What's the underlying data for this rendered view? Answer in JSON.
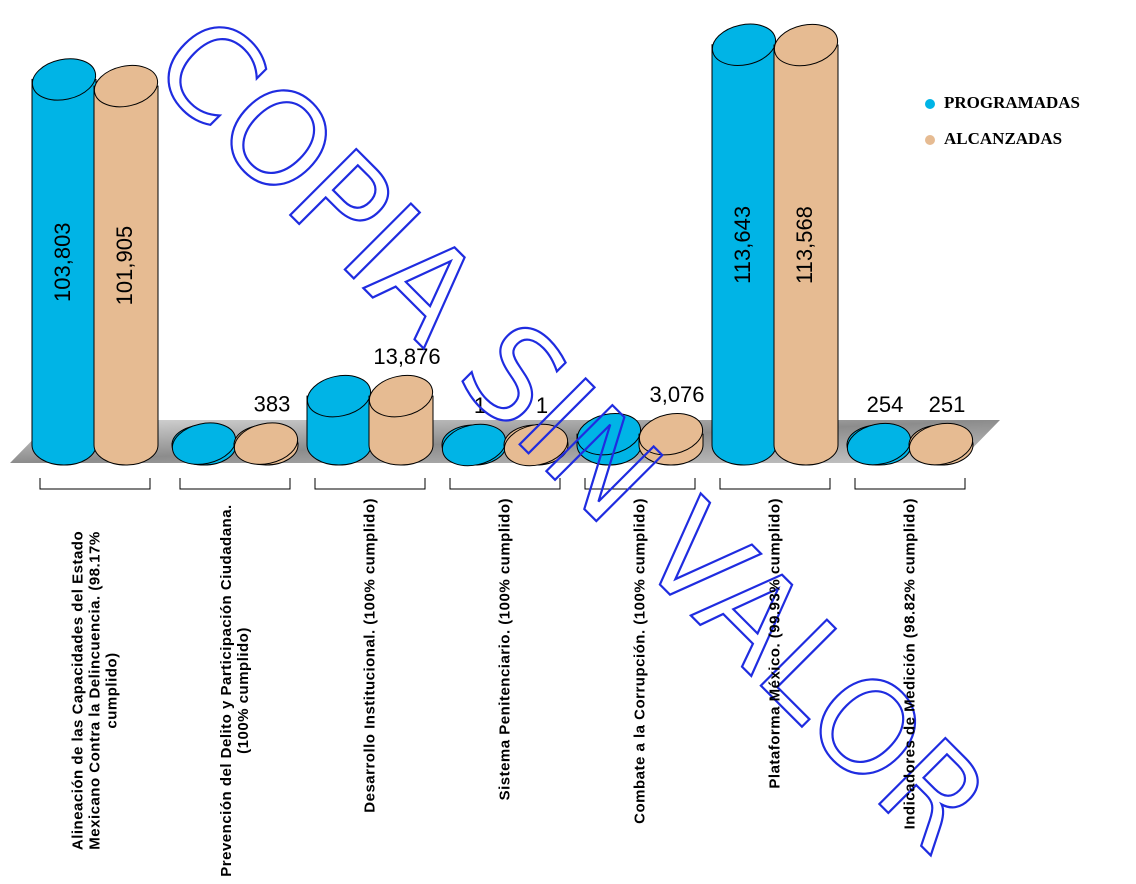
{
  "chart_data": {
    "type": "bar",
    "watermark": "COPIA SIN VALOR",
    "categories": [
      "Alineación de las Capacidades del Estado Mexicano Contra la Delincuencia. (98.17% cumplido)",
      "Prevención del Delito y Participación Ciudadana. (100% cumplido)",
      "Desarrollo Institucional. (100% cumplido)",
      "Sistema Penitenciario. (100% cumplido)",
      "Combate a la Corrupción. (100% cumplido)",
      "Plataforma México. (99.93% cumplido)",
      "Indicadores de Medición (98.82% cumplido)"
    ],
    "series": [
      {
        "name": "PROGRAMADAS",
        "color": "#00b4e6",
        "values": [
          103803,
          383,
          13876,
          1,
          3076,
          113643,
          254
        ],
        "value_labels": [
          "103,803",
          null,
          null,
          "1",
          null,
          "113,643",
          "254"
        ]
      },
      {
        "name": "ALCANZADAS",
        "color": "#e6bb92",
        "values": [
          101905,
          383,
          13876,
          1,
          3076,
          113568,
          251
        ],
        "value_labels": [
          "101,905",
          "383",
          "13,876",
          "1",
          "3,076",
          "113,568",
          "251"
        ]
      }
    ],
    "ylim": [
      0,
      115000
    ],
    "legend": "right"
  }
}
